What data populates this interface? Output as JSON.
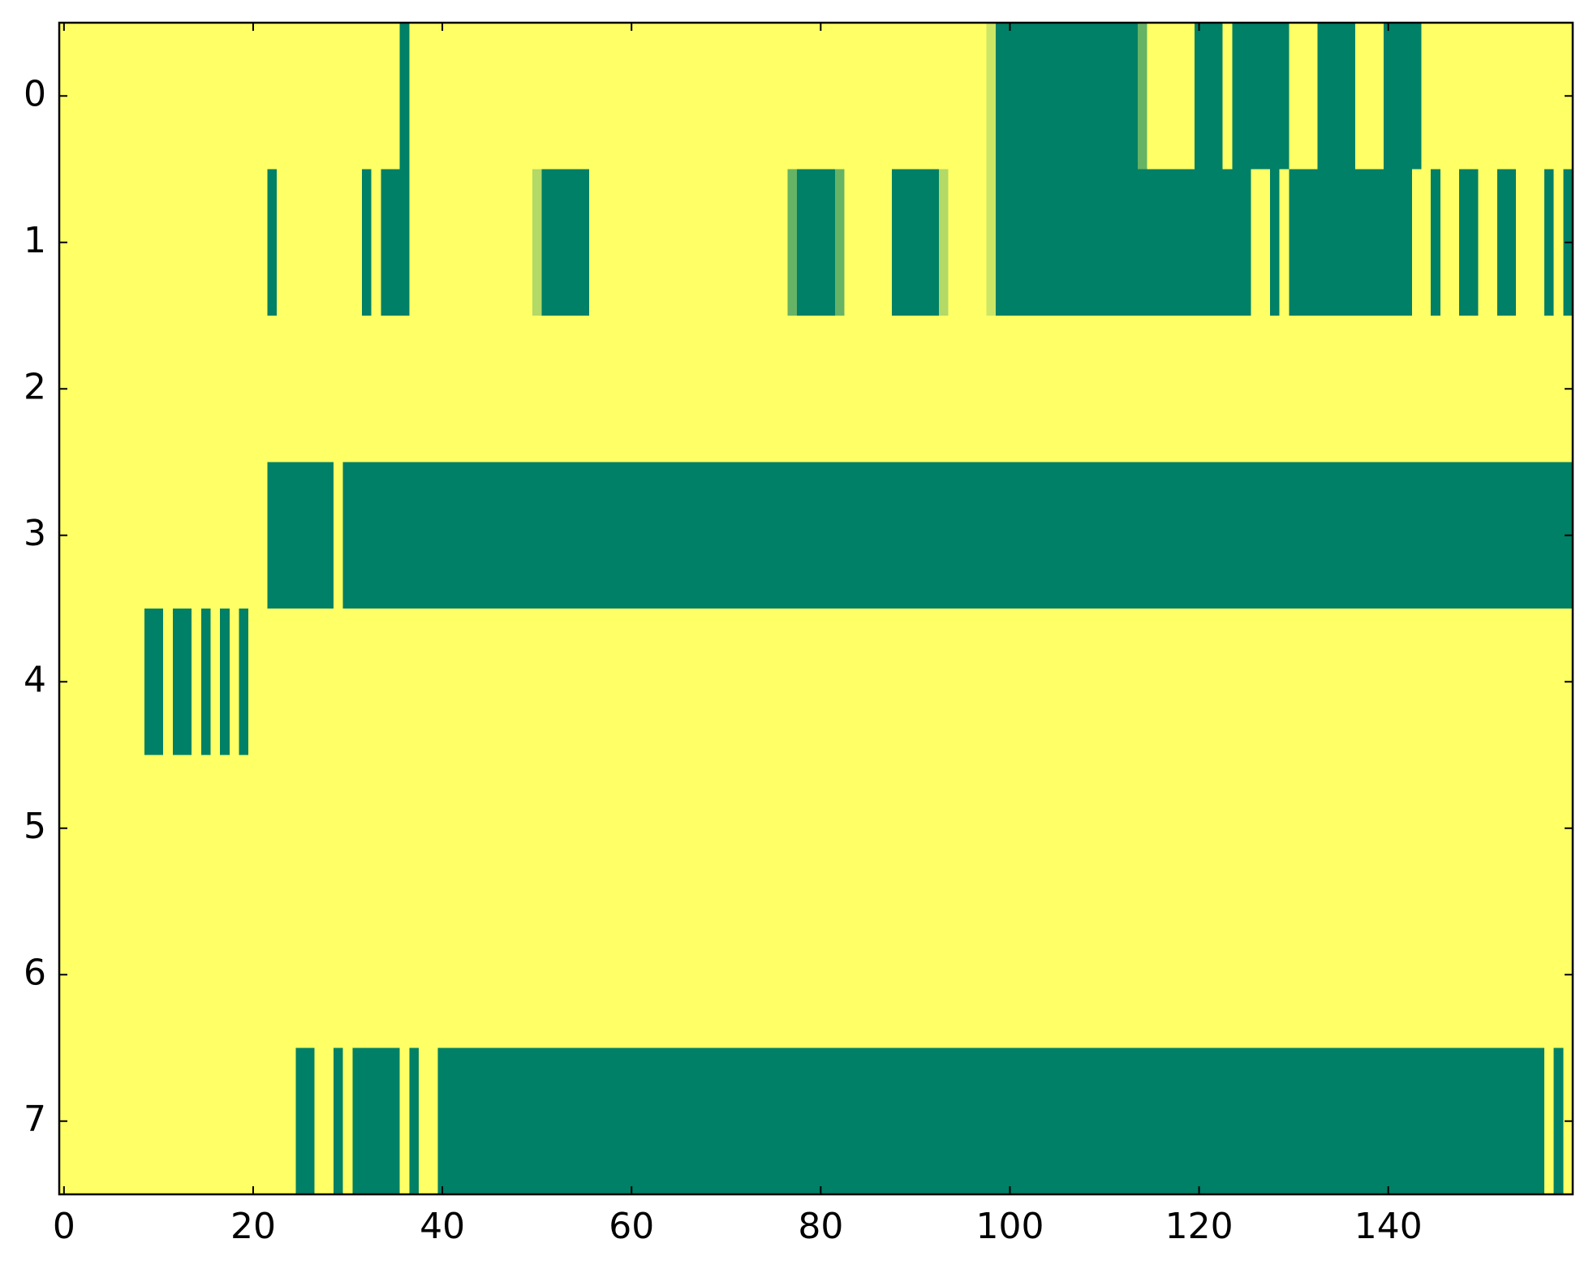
{
  "chart_data": {
    "type": "heatmap",
    "colormap": "summer",
    "colors": [
      "#008066",
      "#ffff66"
    ],
    "xlim": [
      -0.5,
      159.5
    ],
    "ylim": [
      7.5,
      -0.5
    ],
    "xticks": [
      0,
      20,
      40,
      60,
      80,
      100,
      120,
      140
    ],
    "yticks": [
      0,
      1,
      2,
      3,
      4,
      5,
      6,
      7
    ],
    "z": [
      [
        1,
        1,
        1,
        1,
        1,
        1,
        1,
        1,
        1,
        1,
        1,
        1,
        1,
        1,
        1,
        1,
        1,
        1,
        1,
        1,
        1,
        1,
        1,
        1,
        1,
        1,
        1,
        1,
        1,
        1,
        1,
        1,
        1,
        1,
        1,
        1,
        0,
        1,
        1,
        1,
        1,
        1,
        1,
        1,
        1,
        1,
        1,
        1,
        1,
        1,
        1,
        1,
        1,
        1,
        1,
        1,
        1,
        1,
        1,
        1,
        1,
        1,
        1,
        1,
        1,
        1,
        1,
        1,
        1,
        1,
        1,
        1,
        1,
        1,
        1,
        1,
        1,
        1,
        1,
        1,
        1,
        1,
        1,
        1,
        1,
        1,
        1,
        1,
        1,
        1,
        1,
        1,
        1,
        1,
        1,
        1,
        1,
        1,
        0.8,
        0,
        0,
        0,
        0,
        0,
        0,
        0,
        0,
        0,
        0,
        0,
        0,
        0,
        0,
        0,
        0.4,
        1,
        1,
        1,
        1,
        1,
        0,
        0,
        0,
        1,
        0,
        0,
        0,
        0,
        0,
        0,
        1,
        1,
        1,
        0,
        0,
        0,
        0,
        1,
        1,
        1,
        0,
        0,
        0,
        0,
        1,
        1,
        1,
        1,
        1,
        1,
        1,
        1,
        1,
        1,
        1,
        1,
        1,
        1,
        1,
        1
      ],
      [
        1,
        1,
        1,
        1,
        1,
        1,
        1,
        1,
        1,
        1,
        1,
        1,
        1,
        1,
        1,
        1,
        1,
        1,
        1,
        1,
        1,
        1,
        0,
        1,
        1,
        1,
        1,
        1,
        1,
        1,
        1,
        1,
        0,
        1,
        0,
        0,
        0,
        1,
        1,
        1,
        1,
        1,
        1,
        1,
        1,
        1,
        1,
        1,
        1,
        1,
        0.7,
        0,
        0,
        0,
        0,
        0,
        1,
        1,
        1,
        1,
        1,
        1,
        1,
        1,
        1,
        1,
        1,
        1,
        1,
        1,
        1,
        1,
        1,
        1,
        1,
        1,
        1,
        0.4,
        0,
        0,
        0,
        0,
        0.4,
        1,
        1,
        1,
        1,
        1,
        0,
        0,
        0,
        0,
        0,
        0.7,
        1,
        1,
        1,
        1,
        0.8,
        0,
        0,
        0,
        0,
        0,
        0,
        0,
        0,
        0,
        0,
        0,
        0,
        0,
        0,
        0,
        0,
        0,
        0,
        0,
        0,
        0,
        0,
        0,
        0,
        0,
        0,
        0,
        1,
        1,
        0,
        1,
        0,
        0,
        0,
        0,
        0,
        0,
        0,
        0,
        0,
        0,
        0,
        0,
        0,
        1,
        1,
        0,
        1,
        1,
        0,
        0,
        1,
        1,
        0,
        0,
        1,
        1,
        1,
        0,
        1,
        0
      ],
      [
        1,
        1,
        1,
        1,
        1,
        1,
        1,
        1,
        1,
        1,
        1,
        1,
        1,
        1,
        1,
        1,
        1,
        1,
        1,
        1,
        1,
        1,
        1,
        1,
        1,
        1,
        1,
        1,
        1,
        1,
        1,
        1,
        1,
        1,
        1,
        1,
        1,
        1,
        1,
        1,
        1,
        1,
        1,
        1,
        1,
        1,
        1,
        1,
        1,
        1,
        1,
        1,
        1,
        1,
        1,
        1,
        1,
        1,
        1,
        1,
        1,
        1,
        1,
        1,
        1,
        1,
        1,
        1,
        1,
        1,
        1,
        1,
        1,
        1,
        1,
        1,
        1,
        1,
        1,
        1,
        1,
        1,
        1,
        1,
        1,
        1,
        1,
        1,
        1,
        1,
        1,
        1,
        1,
        1,
        1,
        1,
        1,
        1,
        1,
        1,
        1,
        1,
        1,
        1,
        1,
        1,
        1,
        1,
        1,
        1,
        1,
        1,
        1,
        1,
        1,
        1,
        1,
        1,
        1,
        1,
        1,
        1,
        1,
        1,
        1,
        1,
        1,
        1,
        1,
        1,
        1,
        1,
        1,
        1,
        1,
        1,
        1,
        1,
        1,
        1,
        1,
        1,
        1,
        1,
        1,
        1,
        1,
        1,
        1,
        1,
        1,
        1,
        1,
        1,
        1,
        1,
        1,
        1,
        1,
        1
      ],
      [
        1,
        1,
        1,
        1,
        1,
        1,
        1,
        1,
        1,
        1,
        1,
        1,
        1,
        1,
        1,
        1,
        1,
        1,
        1,
        1,
        1,
        1,
        0,
        0,
        0,
        0,
        0,
        0,
        0,
        1,
        0,
        0,
        0,
        0,
        0,
        0,
        0,
        0,
        0,
        0,
        0,
        0,
        0,
        0,
        0,
        0,
        0,
        0,
        0,
        0,
        0,
        0,
        0,
        0,
        0,
        0,
        0,
        0,
        0,
        0,
        0,
        0,
        0,
        0,
        0,
        0,
        0,
        0,
        0,
        0,
        0,
        0,
        0,
        0,
        0,
        0,
        0,
        0,
        0,
        0,
        0,
        0,
        0,
        0,
        0,
        0,
        0,
        0,
        0,
        0,
        0,
        0,
        0,
        0,
        0,
        0,
        0,
        0,
        0,
        0,
        0,
        0,
        0,
        0,
        0,
        0,
        0,
        0,
        0,
        0,
        0,
        0,
        0,
        0,
        0,
        0,
        0,
        0,
        0,
        0,
        0,
        0,
        0,
        0,
        0,
        0,
        0,
        0,
        0,
        0,
        0,
        0,
        0,
        0,
        0,
        0,
        0,
        0,
        0,
        0,
        0,
        0,
        0,
        0,
        0,
        0,
        0,
        0,
        0,
        0,
        0,
        0,
        0,
        0,
        0,
        0,
        0,
        0,
        0,
        0
      ],
      [
        1,
        1,
        1,
        1,
        1,
        1,
        1,
        1,
        1,
        0,
        0,
        1,
        0,
        0,
        1,
        0,
        1,
        0,
        1,
        0,
        1,
        1,
        1,
        1,
        1,
        1,
        1,
        1,
        1,
        1,
        1,
        1,
        1,
        1,
        1,
        1,
        1,
        1,
        1,
        1,
        1,
        1,
        1,
        1,
        1,
        1,
        1,
        1,
        1,
        1,
        1,
        1,
        1,
        1,
        1,
        1,
        1,
        1,
        1,
        1,
        1,
        1,
        1,
        1,
        1,
        1,
        1,
        1,
        1,
        1,
        1,
        1,
        1,
        1,
        1,
        1,
        1,
        1,
        1,
        1,
        1,
        1,
        1,
        1,
        1,
        1,
        1,
        1,
        1,
        1,
        1,
        1,
        1,
        1,
        1,
        1,
        1,
        1,
        1,
        1,
        1,
        1,
        1,
        1,
        1,
        1,
        1,
        1,
        1,
        1,
        1,
        1,
        1,
        1,
        1,
        1,
        1,
        1,
        1,
        1,
        1,
        1,
        1,
        1,
        1,
        1,
        1,
        1,
        1,
        1,
        1,
        1,
        1,
        1,
        1,
        1,
        1,
        1,
        1,
        1,
        1,
        1,
        1,
        1,
        1,
        1,
        1,
        1,
        1,
        1,
        1,
        1,
        1,
        1,
        1,
        1,
        1,
        1,
        1,
        1
      ],
      [
        1,
        1,
        1,
        1,
        1,
        1,
        1,
        1,
        1,
        1,
        1,
        1,
        1,
        1,
        1,
        1,
        1,
        1,
        1,
        1,
        1,
        1,
        1,
        1,
        1,
        1,
        1,
        1,
        1,
        1,
        1,
        1,
        1,
        1,
        1,
        1,
        1,
        1,
        1,
        1,
        1,
        1,
        1,
        1,
        1,
        1,
        1,
        1,
        1,
        1,
        1,
        1,
        1,
        1,
        1,
        1,
        1,
        1,
        1,
        1,
        1,
        1,
        1,
        1,
        1,
        1,
        1,
        1,
        1,
        1,
        1,
        1,
        1,
        1,
        1,
        1,
        1,
        1,
        1,
        1,
        1,
        1,
        1,
        1,
        1,
        1,
        1,
        1,
        1,
        1,
        1,
        1,
        1,
        1,
        1,
        1,
        1,
        1,
        1,
        1,
        1,
        1,
        1,
        1,
        1,
        1,
        1,
        1,
        1,
        1,
        1,
        1,
        1,
        1,
        1,
        1,
        1,
        1,
        1,
        1,
        1,
        1,
        1,
        1,
        1,
        1,
        1,
        1,
        1,
        1,
        1,
        1,
        1,
        1,
        1,
        1,
        1,
        1,
        1,
        1,
        1,
        1,
        1,
        1,
        1,
        1,
        1,
        1,
        1,
        1,
        1,
        1,
        1,
        1,
        1,
        1,
        1,
        1,
        1,
        1
      ],
      [
        1,
        1,
        1,
        1,
        1,
        1,
        1,
        1,
        1,
        1,
        1,
        1,
        1,
        1,
        1,
        1,
        1,
        1,
        1,
        1,
        1,
        1,
        1,
        1,
        1,
        1,
        1,
        1,
        1,
        1,
        1,
        1,
        1,
        1,
        1,
        1,
        1,
        1,
        1,
        1,
        1,
        1,
        1,
        1,
        1,
        1,
        1,
        1,
        1,
        1,
        1,
        1,
        1,
        1,
        1,
        1,
        1,
        1,
        1,
        1,
        1,
        1,
        1,
        1,
        1,
        1,
        1,
        1,
        1,
        1,
        1,
        1,
        1,
        1,
        1,
        1,
        1,
        1,
        1,
        1,
        1,
        1,
        1,
        1,
        1,
        1,
        1,
        1,
        1,
        1,
        1,
        1,
        1,
        1,
        1,
        1,
        1,
        1,
        1,
        1,
        1,
        1,
        1,
        1,
        1,
        1,
        1,
        1,
        1,
        1,
        1,
        1,
        1,
        1,
        1,
        1,
        1,
        1,
        1,
        1,
        1,
        1,
        1,
        1,
        1,
        1,
        1,
        1,
        1,
        1,
        1,
        1,
        1,
        1,
        1,
        1,
        1,
        1,
        1,
        1,
        1,
        1,
        1,
        1,
        1,
        1,
        1,
        1,
        1,
        1,
        1,
        1,
        1,
        1,
        1,
        1,
        1,
        1,
        1,
        1
      ],
      [
        1,
        1,
        1,
        1,
        1,
        1,
        1,
        1,
        1,
        1,
        1,
        1,
        1,
        1,
        1,
        1,
        1,
        1,
        1,
        1,
        1,
        1,
        1,
        1,
        1,
        0,
        0,
        1,
        1,
        0,
        1,
        0,
        0,
        0,
        0,
        0,
        1,
        0,
        1,
        1,
        0,
        0,
        0,
        0,
        0,
        0,
        0,
        0,
        0,
        0,
        0,
        0,
        0,
        0,
        0,
        0,
        0,
        0,
        0,
        0,
        0,
        0,
        0,
        0,
        0,
        0,
        0,
        0,
        0,
        0,
        0,
        0,
        0,
        0,
        0,
        0,
        0,
        0,
        0,
        0,
        0,
        0,
        0,
        0,
        0,
        0,
        0,
        0,
        0,
        0,
        0,
        0,
        0,
        0,
        0,
        0,
        0,
        0,
        0,
        0,
        0,
        0,
        0,
        0,
        0,
        0,
        0,
        0,
        0,
        0,
        0,
        0,
        0,
        0,
        0,
        0,
        0,
        0,
        0,
        0,
        0,
        0,
        0,
        0,
        0,
        0,
        0,
        0,
        0,
        0,
        0,
        0,
        0,
        0,
        0,
        0,
        0,
        0,
        0,
        0,
        0,
        0,
        0,
        0,
        0,
        0,
        0,
        0,
        0,
        0,
        0,
        0,
        0,
        0,
        0,
        0,
        0,
        1,
        0,
        1
      ]
    ]
  }
}
